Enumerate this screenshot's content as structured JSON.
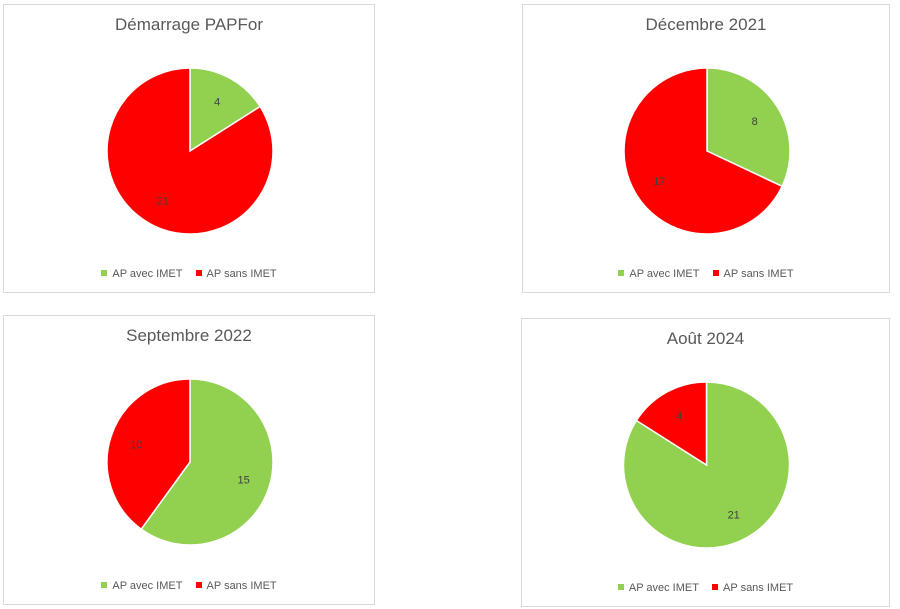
{
  "colors": {
    "avec": "#92d050",
    "sans": "#ff0000"
  },
  "charts": [
    {
      "title": "Démarrage PAPFor"
    },
    {
      "title": "Décembre 2021"
    },
    {
      "title": "Septembre 2022"
    },
    {
      "title": "Août 2024"
    }
  ],
  "chart_data": [
    {
      "type": "pie",
      "title": "Démarrage PAPFor",
      "categories": [
        "AP avec IMET",
        "AP sans IMET"
      ],
      "values": [
        4,
        21
      ],
      "legend": "bottom"
    },
    {
      "type": "pie",
      "title": "Décembre 2021",
      "categories": [
        "AP avec IMET",
        "AP sans IMET"
      ],
      "values": [
        8,
        17
      ],
      "legend": "bottom"
    },
    {
      "type": "pie",
      "title": "Septembre 2022",
      "categories": [
        "AP avec IMET",
        "AP sans IMET"
      ],
      "values": [
        15,
        10
      ],
      "legend": "bottom"
    },
    {
      "type": "pie",
      "title": "Août 2024",
      "categories": [
        "AP avec IMET",
        "AP sans IMET"
      ],
      "values": [
        21,
        4
      ],
      "legend": "bottom"
    }
  ]
}
